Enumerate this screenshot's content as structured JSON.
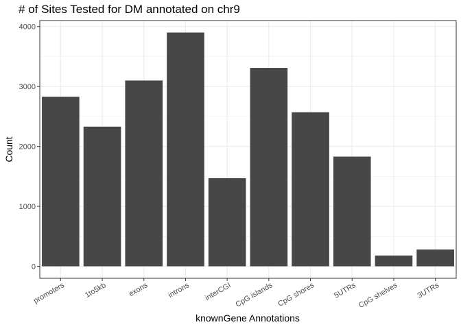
{
  "chart_data": {
    "type": "bar",
    "title": "# of Sites Tested for DM annotated on chr9",
    "xlabel": "knownGene Annotations",
    "ylabel": "Count",
    "categories": [
      "promoters",
      "1to5kb",
      "exons",
      "introns",
      "interCGI",
      "CpG islands",
      "CpG shores",
      "5UTRs",
      "CpG shelves",
      "3UTRs"
    ],
    "values": [
      2830,
      2330,
      3100,
      3900,
      1470,
      3310,
      2570,
      1830,
      180,
      280
    ],
    "yticks": [
      "0",
      "1000",
      "2000",
      "3000",
      "4000"
    ],
    "ylim": [
      -200,
      4100
    ],
    "bar_color": "#474747",
    "grid": true
  }
}
